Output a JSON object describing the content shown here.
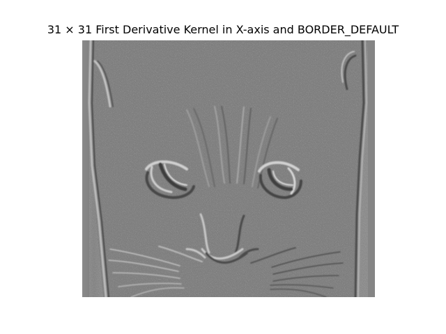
{
  "figure": {
    "title": "31 × 31 First Derivative Kernel in X-axis and BORDER_DEFAULT"
  },
  "image": {
    "subject": "cat-face-edge-map-icon",
    "background_color": "#7f7f7f",
    "highlight_color": "#d8d8d8",
    "shadow_color": "#3f3f3f"
  }
}
